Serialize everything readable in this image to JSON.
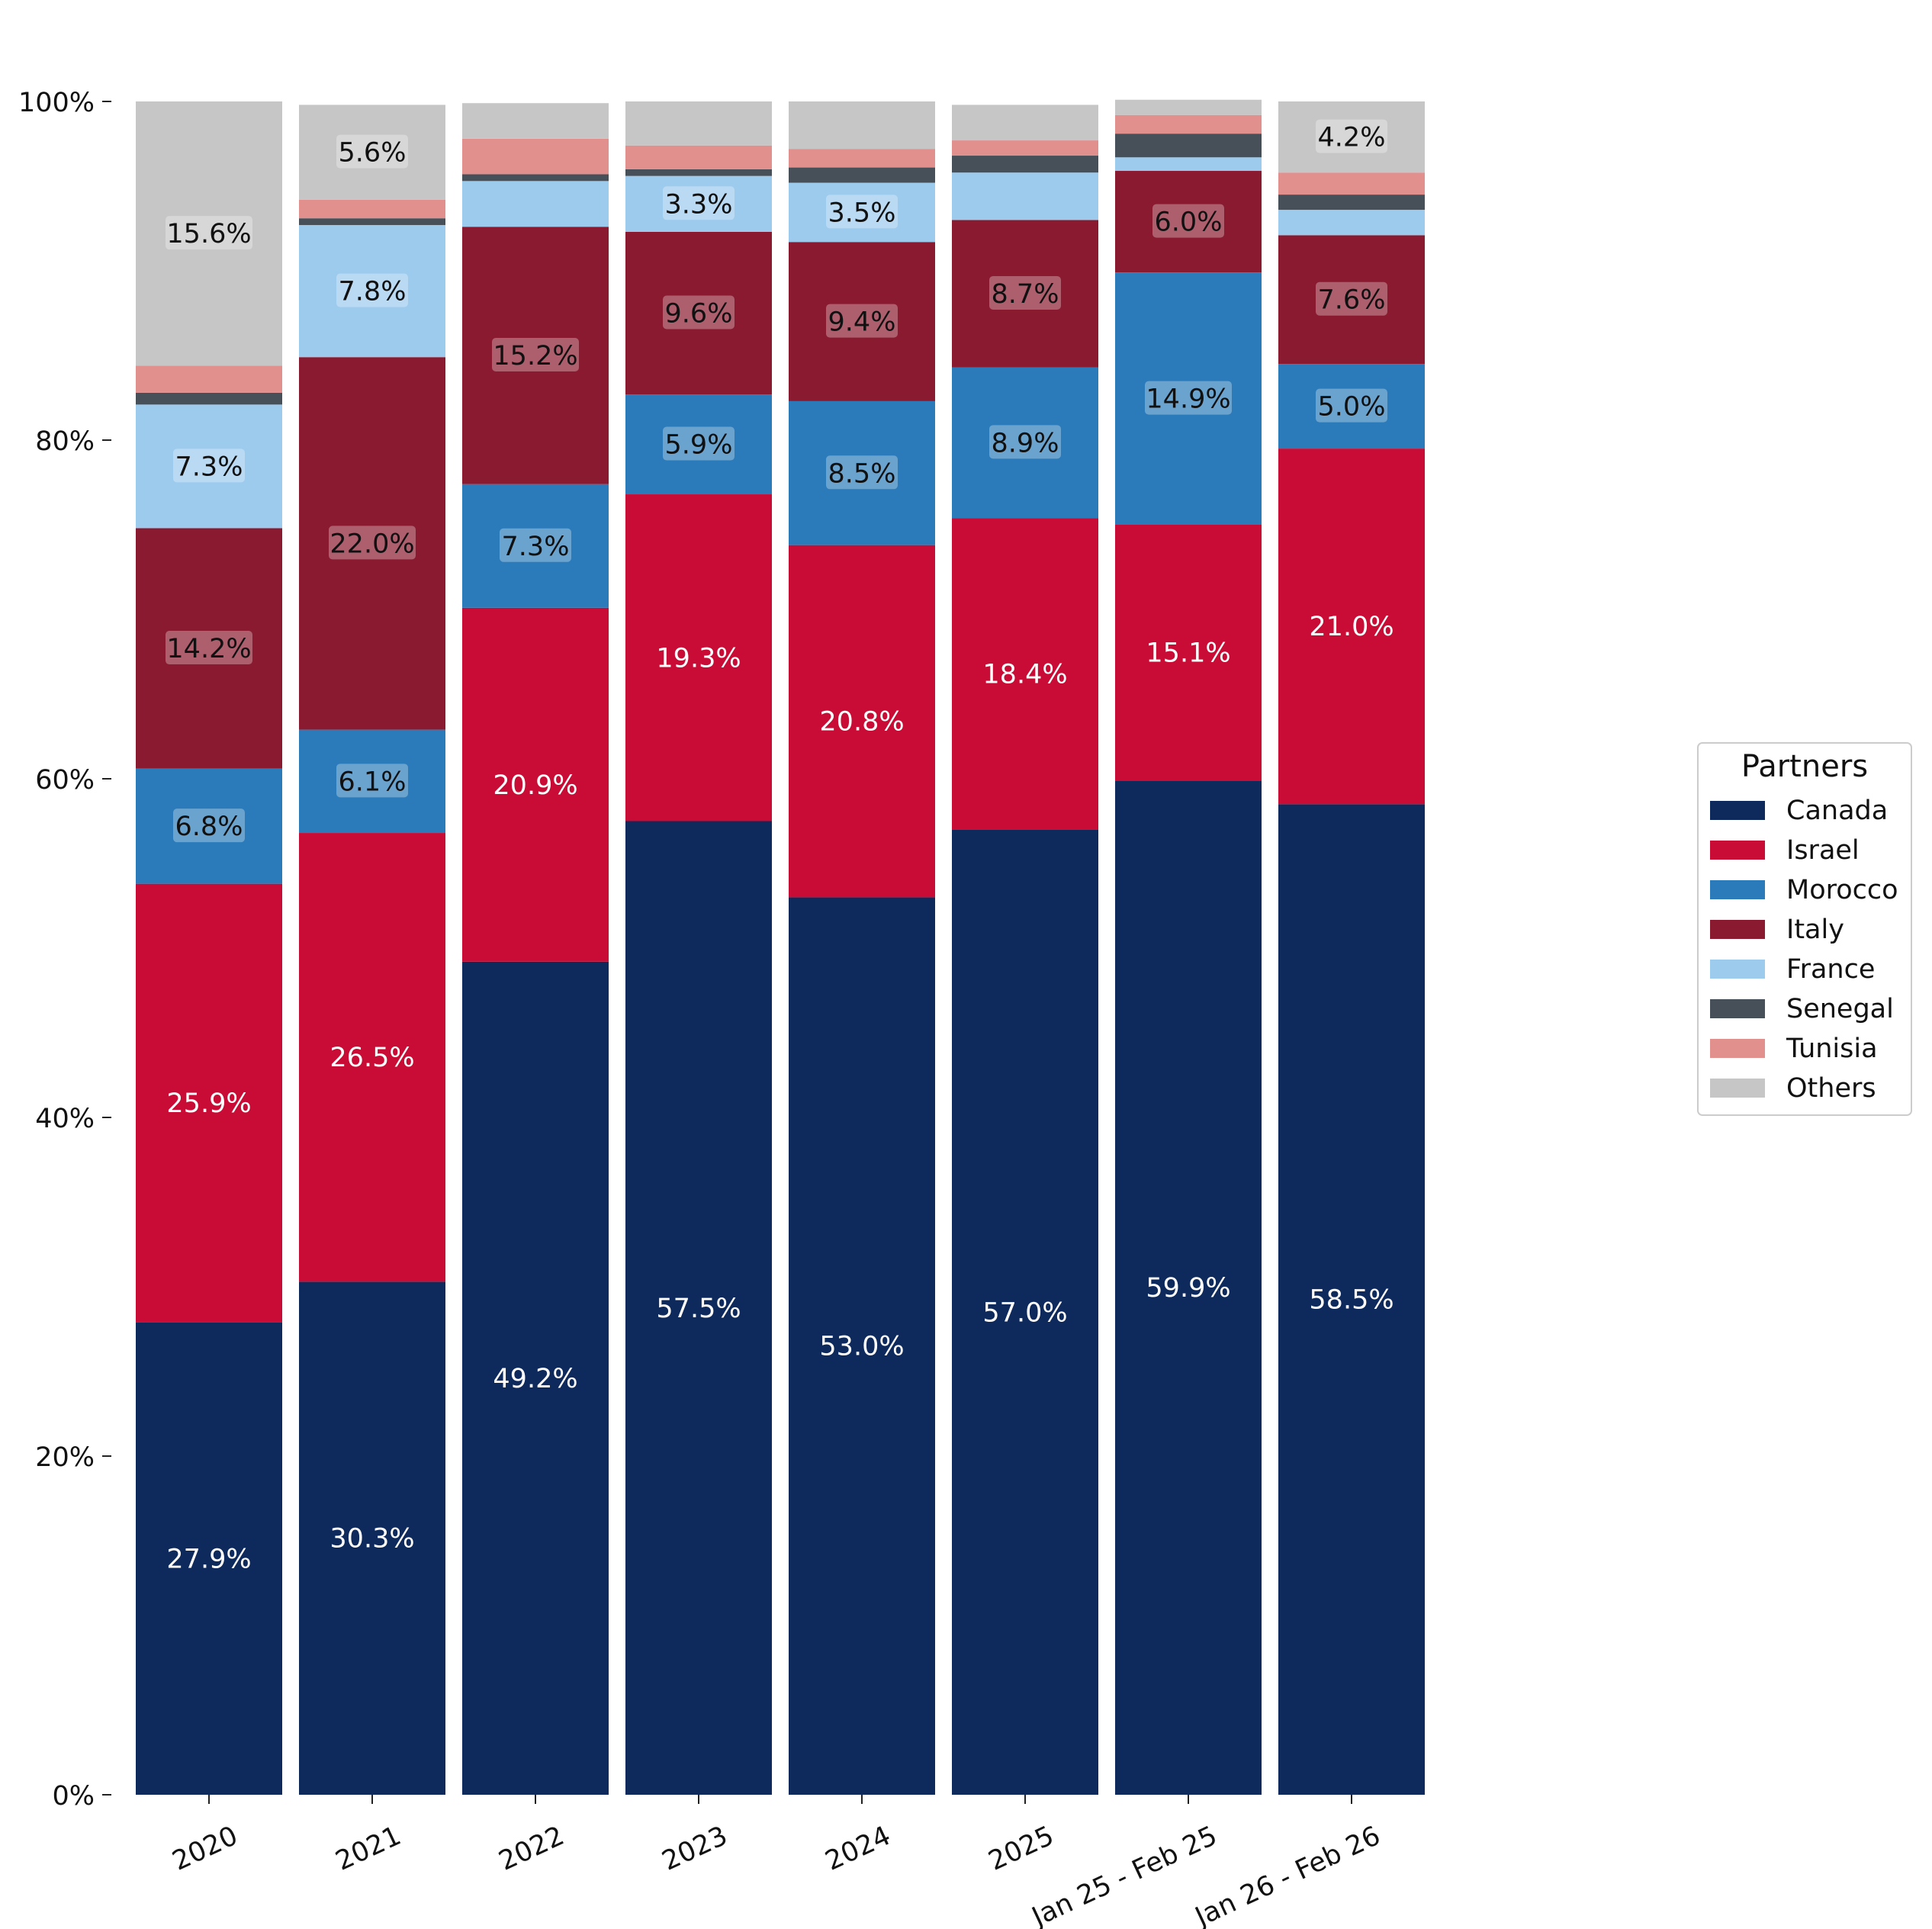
{
  "chart_data": {
    "type": "bar",
    "stacked": true,
    "categories": [
      "2020",
      "2021",
      "2022",
      "2023",
      "2024",
      "2025",
      "Jan 25 - Feb 25",
      "Jan 26 - Feb 26"
    ],
    "y_ticks": [
      "0%",
      "20%",
      "40%",
      "60%",
      "80%",
      "100%"
    ],
    "ylim": [
      0,
      100
    ],
    "legend": {
      "title": "Partners",
      "position": "right"
    },
    "series": [
      {
        "name": "Canada",
        "color": "#0e2a5c",
        "label_color": "#ffffff",
        "label_box": false,
        "values": [
          27.9,
          30.3,
          49.2,
          57.5,
          53.0,
          57.0,
          59.9,
          58.5
        ],
        "labels": [
          "27.9%",
          "30.3%",
          "49.2%",
          "57.5%",
          "53.0%",
          "57.0%",
          "59.9%",
          "58.5%"
        ]
      },
      {
        "name": "Israel",
        "color": "#c90c35",
        "label_color": "#ffffff",
        "label_box": false,
        "values": [
          25.9,
          26.5,
          20.9,
          19.3,
          20.8,
          18.4,
          15.1,
          21.0
        ],
        "labels": [
          "25.9%",
          "26.5%",
          "20.9%",
          "19.3%",
          "20.8%",
          "18.4%",
          "15.1%",
          "21.0%"
        ]
      },
      {
        "name": "Morocco",
        "color": "#2b7bbb",
        "label_color": "#111111",
        "label_box": true,
        "values": [
          6.8,
          6.1,
          7.3,
          5.9,
          8.5,
          8.9,
          14.9,
          5.0
        ],
        "labels": [
          "6.8%",
          "6.1%",
          "7.3%",
          "5.9%",
          "8.5%",
          "8.9%",
          "14.9%",
          "5.0%"
        ]
      },
      {
        "name": "Italy",
        "color": "#8a1a30",
        "label_color": "#111111",
        "label_box": true,
        "values": [
          14.2,
          22.0,
          15.2,
          9.6,
          9.4,
          8.7,
          6.0,
          7.6
        ],
        "labels": [
          "14.2%",
          "22.0%",
          "15.2%",
          "9.6%",
          "9.4%",
          "8.7%",
          "6.0%",
          "7.6%"
        ]
      },
      {
        "name": "France",
        "color": "#9ccbee",
        "label_color": "#111111",
        "label_box": true,
        "values": [
          7.3,
          7.8,
          2.7,
          3.3,
          3.5,
          2.8,
          0.8,
          1.5
        ],
        "labels": [
          "7.3%",
          "7.8%",
          "",
          "3.3%",
          "3.5%",
          "",
          "",
          ""
        ]
      },
      {
        "name": "Senegal",
        "color": "#474f59",
        "label_color": "#111111",
        "label_box": true,
        "values": [
          0.7,
          0.4,
          0.4,
          0.4,
          0.9,
          1.0,
          1.4,
          0.9
        ],
        "labels": [
          "",
          "",
          "",
          "",
          "",
          "",
          "",
          ""
        ]
      },
      {
        "name": "Tunisia",
        "color": "#e1908e",
        "label_color": "#111111",
        "label_box": true,
        "values": [
          1.6,
          1.1,
          2.1,
          1.4,
          1.1,
          0.9,
          1.1,
          1.3
        ],
        "labels": [
          "",
          "",
          "",
          "",
          "",
          "",
          "",
          ""
        ]
      },
      {
        "name": "Others",
        "color": "#c6c6c6",
        "label_color": "#111111",
        "label_box": true,
        "values": [
          15.6,
          5.6,
          2.1,
          2.6,
          2.8,
          2.1,
          0.9,
          4.2
        ],
        "labels": [
          "15.6%",
          "5.6%",
          "",
          "",
          "",
          "",
          "",
          "4.2%"
        ]
      }
    ]
  }
}
